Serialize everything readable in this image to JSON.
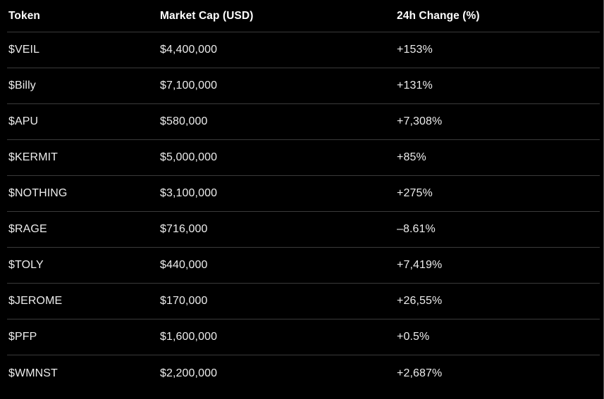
{
  "table": {
    "columns": [
      {
        "key": "token",
        "label": "Token"
      },
      {
        "key": "market_cap",
        "label": "Market Cap (USD)"
      },
      {
        "key": "change_24h",
        "label": "24h Change (%)"
      }
    ],
    "rows": [
      {
        "token": "$VEIL",
        "market_cap": "$4,400,000",
        "change_24h": "+153%"
      },
      {
        "token": "$Billy",
        "market_cap": "$7,100,000",
        "change_24h": "+131%"
      },
      {
        "token": "$APU",
        "market_cap": "$580,000",
        "change_24h": "+7,308%"
      },
      {
        "token": "$KERMIT",
        "market_cap": "$5,000,000",
        "change_24h": "+85%"
      },
      {
        "token": "$NOTHING",
        "market_cap": "$3,100,000",
        "change_24h": "+275%"
      },
      {
        "token": "$RAGE",
        "market_cap": "$716,000",
        "change_24h": "–8.61%"
      },
      {
        "token": "$TOLY",
        "market_cap": "$440,000",
        "change_24h": "+7,419%"
      },
      {
        "token": "$JEROME",
        "market_cap": "$170,000",
        "change_24h": "+26,55%"
      },
      {
        "token": "$PFP",
        "market_cap": "$1,600,000",
        "change_24h": "+0.5%"
      },
      {
        "token": "$WMNST",
        "market_cap": "$2,200,000",
        "change_24h": "+2,687%"
      }
    ]
  },
  "chart_data": {
    "type": "table",
    "title": "",
    "columns": [
      "Token",
      "Market Cap (USD)",
      "24h Change (%)"
    ],
    "rows": [
      [
        "$VEIL",
        "$4,400,000",
        "+153%"
      ],
      [
        "$Billy",
        "$7,100,000",
        "+131%"
      ],
      [
        "$APU",
        "$580,000",
        "+7,308%"
      ],
      [
        "$KERMIT",
        "$5,000,000",
        "+85%"
      ],
      [
        "$NOTHING",
        "$3,100,000",
        "+275%"
      ],
      [
        "$RAGE",
        "$716,000",
        "–8.61%"
      ],
      [
        "$TOLY",
        "$440,000",
        "+7,419%"
      ],
      [
        "$JEROME",
        "$170,000",
        "+26,55%"
      ],
      [
        "$PFP",
        "$1,600,000",
        "+0.5%"
      ],
      [
        "$WMNST",
        "$2,200,000",
        "+2,687%"
      ]
    ],
    "numeric": {
      "market_cap_usd": [
        4400000,
        7100000,
        580000,
        5000000,
        3100000,
        716000,
        440000,
        170000,
        1600000,
        2200000
      ],
      "change_24h_pct": [
        153,
        131,
        7308,
        85,
        275,
        -8.61,
        7419,
        26.55,
        0.5,
        2687
      ]
    }
  },
  "colors": {
    "background": "#000000",
    "header_text": "#ffffff",
    "row_text": "#ececec",
    "divider": "#3a3a3a",
    "right_edge": "#555555"
  }
}
